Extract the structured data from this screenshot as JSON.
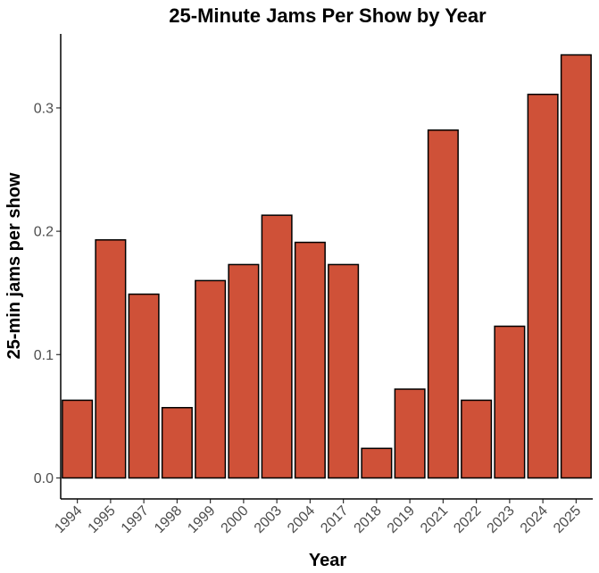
{
  "chart_data": {
    "type": "bar",
    "title": "25-Minute Jams Per Show by Year",
    "xlabel": "Year",
    "ylabel": "25-min jams per show",
    "categories": [
      "1994",
      "1995",
      "1997",
      "1998",
      "1999",
      "2000",
      "2003",
      "2004",
      "2017",
      "2018",
      "2019",
      "2021",
      "2022",
      "2023",
      "2024",
      "2025"
    ],
    "values": [
      0.063,
      0.193,
      0.149,
      0.057,
      0.16,
      0.173,
      0.213,
      0.191,
      0.173,
      0.024,
      0.072,
      0.282,
      0.063,
      0.123,
      0.311,
      0.343
    ],
    "ylim": [
      -0.017,
      0.36
    ],
    "yticks": [
      0.0,
      0.1,
      0.2,
      0.3
    ],
    "ytick_labels": [
      "0.0",
      "0.1",
      "0.2",
      "0.3"
    ],
    "bar_color": "#cf5138",
    "grid": false,
    "legend": "none"
  }
}
